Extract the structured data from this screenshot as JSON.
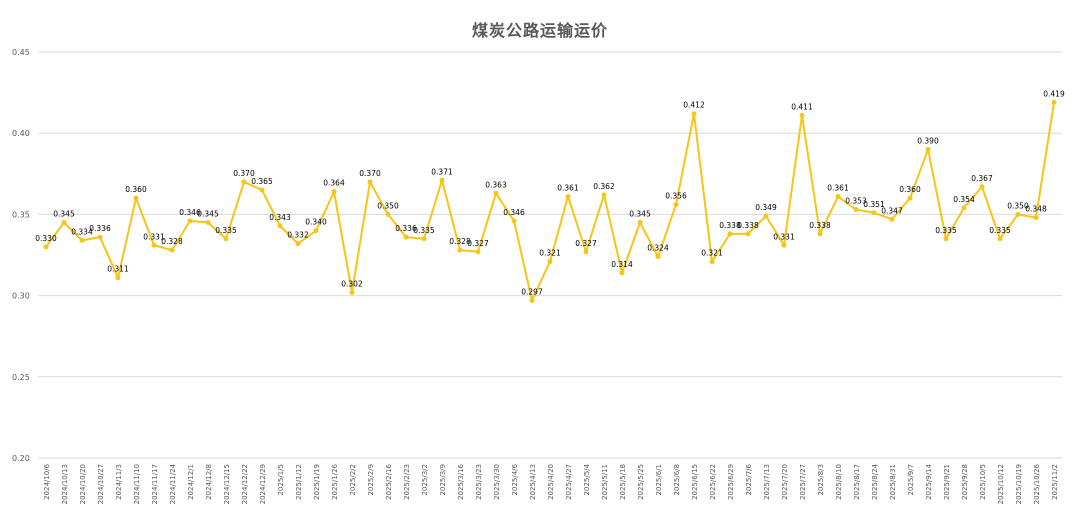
{
  "chart_data": {
    "type": "line",
    "title": "煤炭公路运输运价",
    "xlabel": "",
    "ylabel": "",
    "ylim": [
      0.2,
      0.45
    ],
    "yticks": [
      "0.20",
      "0.25",
      "0.30",
      "0.35",
      "0.40",
      "0.45"
    ],
    "grid": true,
    "legend": "none",
    "line_color": "#F5C518",
    "categories": [
      "2024/10/6",
      "2024/10/13",
      "2024/10/20",
      "2024/10/27",
      "2024/11/3",
      "2024/11/10",
      "2024/11/17",
      "2024/11/24",
      "2024/12/1",
      "2024/12/8",
      "2024/12/15",
      "2024/12/22",
      "2024/12/29",
      "2025/1/5",
      "2025/1/12",
      "2025/1/19",
      "2025/1/26",
      "2025/2/2",
      "2025/2/9",
      "2025/2/16",
      "2025/2/23",
      "2025/3/2",
      "2025/3/9",
      "2025/3/16",
      "2025/3/23",
      "2025/3/30",
      "2025/4/6",
      "2025/4/13",
      "2025/4/20",
      "2025/4/27",
      "2025/5/4",
      "2025/5/11",
      "2025/5/18",
      "2025/5/25",
      "2025/6/1",
      "2025/6/8",
      "2025/6/15",
      "2025/6/22",
      "2025/6/29",
      "2025/7/6",
      "2025/7/13",
      "2025/7/20",
      "2025/7/27",
      "2025/8/3",
      "2025/8/10",
      "2025/8/17",
      "2025/8/24",
      "2025/8/31",
      "2025/9/7",
      "2025/9/14",
      "2025/9/21",
      "2025/9/28",
      "2025/10/5",
      "2025/10/12",
      "2025/10/19",
      "2025/10/26",
      "2025/11/2"
    ],
    "values": [
      0.33,
      0.345,
      0.334,
      0.336,
      0.311,
      0.36,
      0.331,
      0.328,
      0.346,
      0.345,
      0.335,
      0.37,
      0.365,
      0.343,
      0.332,
      0.34,
      0.364,
      0.302,
      0.37,
      0.35,
      0.336,
      0.335,
      0.371,
      0.328,
      0.327,
      0.363,
      0.346,
      0.297,
      0.321,
      0.361,
      0.327,
      0.362,
      0.314,
      0.345,
      0.324,
      0.356,
      0.412,
      0.321,
      0.338,
      0.338,
      0.349,
      0.331,
      0.411,
      0.338,
      0.361,
      0.353,
      0.351,
      0.347,
      0.36,
      0.39,
      0.335,
      0.354,
      0.367,
      0.335,
      0.35,
      0.348,
      0.419
    ],
    "labels": [
      "0.330",
      "0.345",
      "0.334",
      "0.336",
      "0.311",
      "0.360",
      "0.331",
      "0.328",
      "0.346",
      "0.345",
      "0.335",
      "0.370",
      "0.365",
      "0.343",
      "0.332",
      "0.340",
      "0.364",
      "0.302",
      "0.370",
      "0.350",
      "0.336",
      "0.335",
      "0.371",
      "0.328",
      "0.327",
      "0.363",
      "0.346",
      "0.297",
      "0.321",
      "0.361",
      "0.327",
      "0.362",
      "0.314",
      "0.345",
      "0.324",
      "0.356",
      "0.412",
      "0.321",
      "0.338",
      "0.338",
      "0.349",
      "0.331",
      "0.411",
      "0.338",
      "0.361",
      "0.353",
      "0.351",
      "0.347",
      "0.360",
      "0.390",
      "0.335",
      "0.354",
      "0.367",
      "0.335",
      "0.350",
      "0.348",
      "0.419"
    ]
  }
}
